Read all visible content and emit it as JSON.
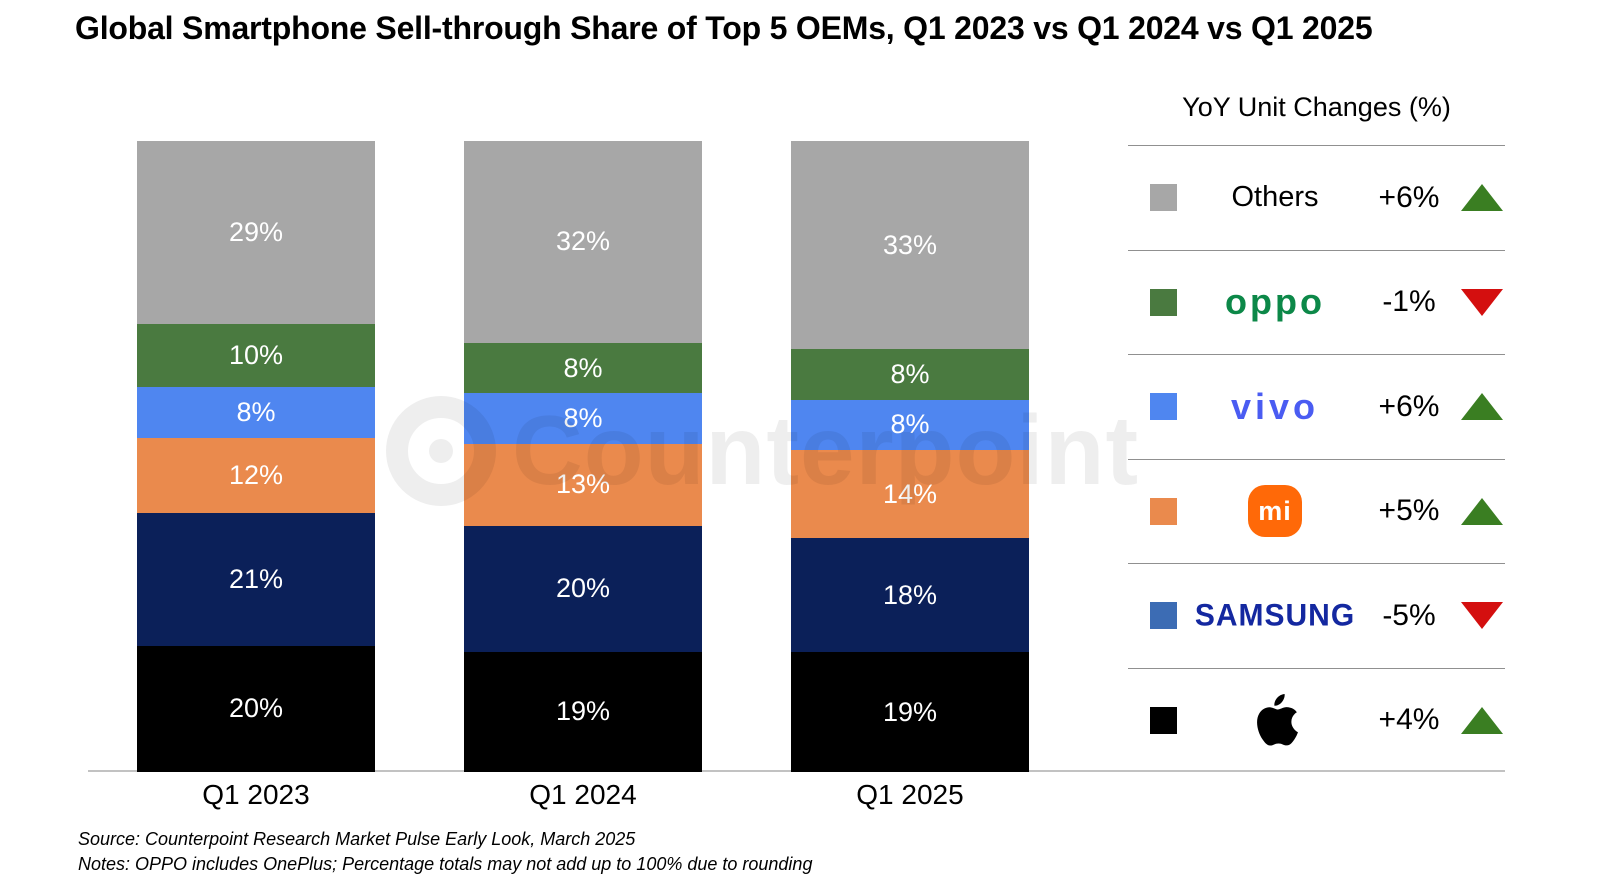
{
  "title": "Global Smartphone Sell-through Share of Top 5 OEMs, Q1 2023 vs Q1 2024 vs Q1 2025",
  "watermark": {
    "text": "Counterpoint"
  },
  "chart_data": {
    "type": "bar",
    "stacked": true,
    "unit": "%",
    "title": "Global Smartphone Sell-through Share of Top 5 OEMs, Q1 2023 vs Q1 2024 vs Q1 2025",
    "categories": [
      "Q1 2023",
      "Q1 2024",
      "Q1 2025"
    ],
    "series": [
      {
        "name": "Apple",
        "color": "#000000",
        "values": [
          20,
          19,
          19
        ]
      },
      {
        "name": "Samsung",
        "color": "#0b2059",
        "values": [
          21,
          20,
          18
        ]
      },
      {
        "name": "Xiaomi",
        "color": "#ea8a4d",
        "values": [
          12,
          13,
          14
        ]
      },
      {
        "name": "vivo",
        "color": "#4f86f0",
        "values": [
          8,
          8,
          8
        ]
      },
      {
        "name": "OPPO",
        "color": "#4a7a40",
        "values": [
          10,
          8,
          8
        ]
      },
      {
        "name": "Others",
        "color": "#a7a7a7",
        "values": [
          29,
          32,
          33
        ]
      }
    ],
    "ylim": [
      0,
      100
    ],
    "value_label_suffix": "%",
    "legend_position": "right",
    "grid": false
  },
  "yoy_panel": {
    "title": "YoY Unit Changes (%)",
    "up_color": "#3a7e22",
    "down_color": "#d40f0f",
    "rows": [
      {
        "brand": "Others",
        "logo": "text",
        "swatch": "#a7a7a7",
        "change": "+6%",
        "direction": "up"
      },
      {
        "brand": "OPPO",
        "logo": "oppo",
        "swatch": "#4a7a40",
        "change": "-1%",
        "direction": "down"
      },
      {
        "brand": "vivo",
        "logo": "vivo",
        "swatch": "#4f86f0",
        "change": "+6%",
        "direction": "up"
      },
      {
        "brand": "Xiaomi",
        "logo": "mi",
        "swatch": "#ea8a4d",
        "change": "+5%",
        "direction": "up"
      },
      {
        "brand": "Samsung",
        "logo": "samsung",
        "swatch": "#3c6cb4",
        "change": "-5%",
        "direction": "down"
      },
      {
        "brand": "Apple",
        "logo": "apple",
        "swatch": "#000000",
        "change": "+4%",
        "direction": "up"
      }
    ],
    "logo_text": {
      "oppo": "oppo",
      "vivo": "vivo",
      "mi": "mi",
      "samsung": "SAMSUNG"
    }
  },
  "footer": {
    "source": "Source: Counterpoint Research Market Pulse Early Look, March 2025",
    "notes": "Notes: OPPO includes OnePlus; Percentage totals may not add up to 100% due to rounding"
  }
}
